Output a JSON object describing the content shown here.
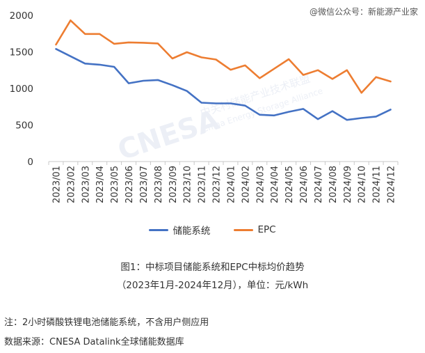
{
  "header": {
    "source_badge": "@微信公众号：新能源产业家"
  },
  "watermark": {
    "brand": "CNESA",
    "cn": "中关村储能产业技术联盟",
    "en": "China Energy Storage Alliance"
  },
  "chart_data": {
    "type": "line",
    "categories": [
      "2023/01",
      "2023/02",
      "2023/03",
      "2023/04",
      "2023/05",
      "2023/06",
      "2023/07",
      "2023/08",
      "2023/09",
      "2023/10",
      "2023/11",
      "2023/12",
      "2024/01",
      "2024/02",
      "2024/03",
      "2024/04",
      "2024/05",
      "2024/06",
      "2024/07",
      "2024/08",
      "2024/09",
      "2024/10",
      "2024/11",
      "2024/12"
    ],
    "series": [
      {
        "name": "储能系统",
        "color": "#4472C4",
        "values": [
          1540,
          1440,
          1340,
          1325,
          1295,
          1070,
          1105,
          1115,
          1045,
          965,
          805,
          795,
          795,
          765,
          640,
          630,
          680,
          720,
          580,
          690,
          570,
          595,
          615,
          710
        ]
      },
      {
        "name": "EPC",
        "color": "#ED7D31",
        "values": [
          1600,
          1930,
          1745,
          1745,
          1610,
          1630,
          1625,
          1615,
          1410,
          1495,
          1425,
          1395,
          1255,
          1315,
          1140,
          1270,
          1400,
          1185,
          1250,
          1130,
          1250,
          940,
          1155,
          1095
        ]
      }
    ],
    "ylim": [
      0,
      2000
    ],
    "yticks": [
      0,
      500,
      1000,
      1500,
      2000
    ],
    "grid": false,
    "legend": "bottom"
  },
  "caption": {
    "line1": "图1：中标项目储能系统和EPC中标均价趋势",
    "line2": "（2023年1月-2024年12月），单位：元/kWh"
  },
  "notes": {
    "note": "注：2小时磷酸铁锂电池储能系统，不含用户侧应用",
    "source": "数据来源：CNESA Datalink全球储能数据库"
  }
}
